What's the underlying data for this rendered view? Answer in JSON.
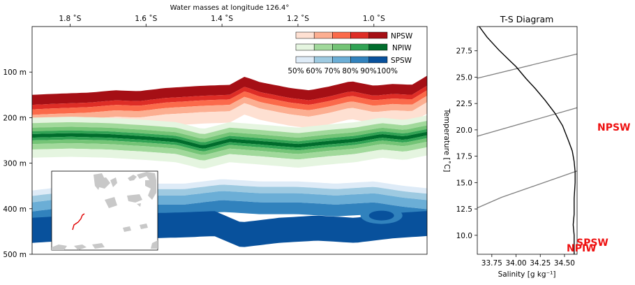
{
  "colors": {
    "npsw": [
      "#fee0d2",
      "#fcae91",
      "#fb6a4a",
      "#de2d26",
      "#a50f15"
    ],
    "npiw": [
      "#e5f5e0",
      "#a1d99b",
      "#74c476",
      "#31a354",
      "#006d2c"
    ],
    "spsw": [
      "#deebf7",
      "#9ecae1",
      "#6baed6",
      "#3182bd",
      "#08519c"
    ],
    "label_red": "#ee1111",
    "land": "#c8c8c8"
  },
  "chart_data": [
    {
      "type": "heatmap",
      "title": "Water masses at longitude 126.4°",
      "x_ticks": [
        "1.8 ˚S",
        "1.6 ˚S",
        "1.4 ˚S",
        "1.2 ˚S",
        "1.0 ˚S"
      ],
      "x_tick_values": [
        -1.8,
        -1.6,
        -1.4,
        -1.2,
        -1.0
      ],
      "x_range": [
        -1.9,
        -0.86
      ],
      "y_ticks": [
        "100 m",
        "200 m",
        "300 m",
        "400 m",
        "500 m"
      ],
      "y_tick_values": [
        100,
        200,
        300,
        400,
        500
      ],
      "y_range": [
        500,
        0
      ],
      "legend": {
        "entries": [
          "NPSW",
          "NPIW",
          "SPSW"
        ],
        "percent_labels": [
          "50%",
          "60%",
          "70%",
          "80%",
          "90%",
          "100%"
        ],
        "placement": "top-right"
      },
      "npsw_top_depth": [
        [
          -1.9,
          150
        ],
        [
          -1.85,
          148
        ],
        [
          -1.75,
          145
        ],
        [
          -1.68,
          140
        ],
        [
          -1.62,
          142
        ],
        [
          -1.55,
          135
        ],
        [
          -1.45,
          130
        ],
        [
          -1.38,
          128
        ],
        [
          -1.34,
          110
        ],
        [
          -1.3,
          122
        ],
        [
          -1.22,
          135
        ],
        [
          -1.17,
          140
        ],
        [
          -1.12,
          132
        ],
        [
          -1.06,
          120
        ],
        [
          -1.0,
          130
        ],
        [
          -0.95,
          126
        ],
        [
          -0.9,
          128
        ],
        [
          -0.86,
          108
        ]
      ],
      "npiw_core_depth": [
        [
          -1.9,
          240
        ],
        [
          -1.8,
          238
        ],
        [
          -1.7,
          240
        ],
        [
          -1.6,
          245
        ],
        [
          -1.52,
          250
        ],
        [
          -1.45,
          265
        ],
        [
          -1.38,
          250
        ],
        [
          -1.3,
          255
        ],
        [
          -1.2,
          262
        ],
        [
          -1.12,
          255
        ],
        [
          -1.05,
          250
        ],
        [
          -0.98,
          240
        ],
        [
          -0.92,
          245
        ],
        [
          -0.86,
          235
        ]
      ],
      "spsw_top_depth": [
        [
          -1.9,
          360
        ],
        [
          -1.8,
          350
        ],
        [
          -1.7,
          345
        ],
        [
          -1.6,
          345
        ],
        [
          -1.5,
          345
        ],
        [
          -1.4,
          335
        ],
        [
          -1.3,
          340
        ],
        [
          -1.2,
          340
        ],
        [
          -1.1,
          345
        ],
        [
          -1.0,
          340
        ],
        [
          -0.92,
          350
        ],
        [
          -0.86,
          355
        ]
      ],
      "spsw_core_depth": [
        [
          -1.9,
          430
        ],
        [
          -1.8,
          425
        ],
        [
          -1.7,
          420
        ],
        [
          -1.6,
          420
        ],
        [
          -1.5,
          418
        ],
        [
          -1.42,
          415
        ],
        [
          -1.35,
          440
        ],
        [
          -1.25,
          430
        ],
        [
          -1.15,
          425
        ],
        [
          -1.05,
          430
        ],
        [
          -0.95,
          420
        ],
        [
          -0.86,
          415
        ]
      ],
      "eddy": {
        "lon": -0.98,
        "depth": 425
      }
    },
    {
      "type": "line",
      "title": "T-S Diagram",
      "xlabel": "Salinity [g kg⁻¹]",
      "ylabel": "Temperature [˚C]",
      "xlim": [
        33.6,
        34.63
      ],
      "ylim": [
        8.2,
        29.8
      ],
      "x_ticks": [
        "33.75",
        "34.00",
        "34.25",
        "34.50"
      ],
      "x_tick_values": [
        33.75,
        34.0,
        34.25,
        34.5
      ],
      "y_ticks": [
        "10.0",
        "12.5",
        "15.0",
        "17.5",
        "20.0",
        "22.5",
        "25.0",
        "27.5"
      ],
      "y_tick_values": [
        10.0,
        12.5,
        15.0,
        17.5,
        20.0,
        22.5,
        25.0,
        27.5
      ],
      "series": [
        {
          "values": [
            [
              33.62,
              29.8
            ],
            [
              33.7,
              28.8
            ],
            [
              33.82,
              27.6
            ],
            [
              33.92,
              26.7
            ],
            [
              34.0,
              26.0
            ],
            [
              34.1,
              24.9
            ],
            [
              34.2,
              23.9
            ],
            [
              34.3,
              22.8
            ],
            [
              34.4,
              21.6
            ],
            [
              34.48,
              20.4
            ],
            [
              34.54,
              19.0
            ],
            [
              34.58,
              18.0
            ],
            [
              34.6,
              17.0
            ],
            [
              34.61,
              16.0
            ],
            [
              34.61,
              15.0
            ],
            [
              34.6,
              13.5
            ],
            [
              34.6,
              12.0
            ],
            [
              34.59,
              11.0
            ],
            [
              34.6,
              10.0
            ],
            [
              34.6,
              9.0
            ],
            [
              34.6,
              8.2
            ]
          ]
        }
      ],
      "reference_lines": [
        [
          [
            33.6,
            24.9
          ],
          [
            34.63,
            27.2
          ]
        ],
        [
          [
            33.6,
            19.4
          ],
          [
            34.63,
            22.1
          ]
        ],
        [
          [
            33.6,
            12.6
          ],
          [
            33.85,
            13.6
          ],
          [
            34.63,
            16.1
          ]
        ]
      ],
      "annotations": [
        "NPSW",
        "SPSW",
        "NPIW"
      ]
    }
  ]
}
